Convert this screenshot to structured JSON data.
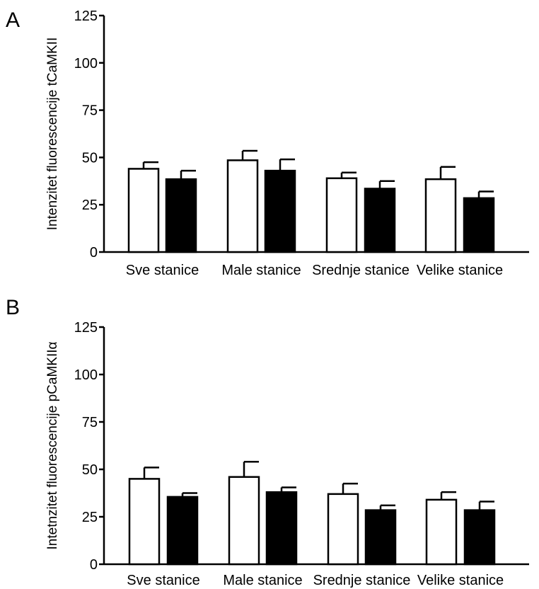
{
  "chart_data": [
    {
      "type": "bar",
      "panel_label": "A",
      "ylabel": "Intenzitet fluorescencije tCaMKII",
      "ylim": [
        0,
        125
      ],
      "yticks": [
        "0",
        "25",
        "50",
        "75",
        "100",
        "125"
      ],
      "categories": [
        "Sve stanice",
        "Male stanice",
        "Srednje stanice",
        "Velike stanice"
      ],
      "series": [
        {
          "fill": "#ffffff",
          "values": [
            44,
            48.5,
            39,
            38.5
          ],
          "errors": [
            3.5,
            5,
            3,
            6.5
          ]
        },
        {
          "fill": "#000000",
          "values": [
            38.5,
            43,
            33.5,
            28.5
          ],
          "errors": [
            4.5,
            6,
            4,
            3.5
          ]
        }
      ],
      "grid": false
    },
    {
      "type": "bar",
      "panel_label": "B",
      "ylabel": "Intetnzitet fluorescencije pCaMKIIα",
      "ylim": [
        0,
        125
      ],
      "yticks": [
        "0",
        "25",
        "50",
        "75",
        "100",
        "125"
      ],
      "categories": [
        "Sve stanice",
        "Male stanice",
        "Srednje stanice",
        "Velike stanice"
      ],
      "series": [
        {
          "fill": "#ffffff",
          "values": [
            45,
            46,
            37,
            34
          ],
          "errors": [
            6,
            8,
            5.5,
            4
          ]
        },
        {
          "fill": "#000000",
          "values": [
            35.5,
            38,
            28.5,
            28.5
          ],
          "errors": [
            2,
            2.5,
            2.5,
            4.5
          ]
        }
      ],
      "grid": false
    }
  ]
}
